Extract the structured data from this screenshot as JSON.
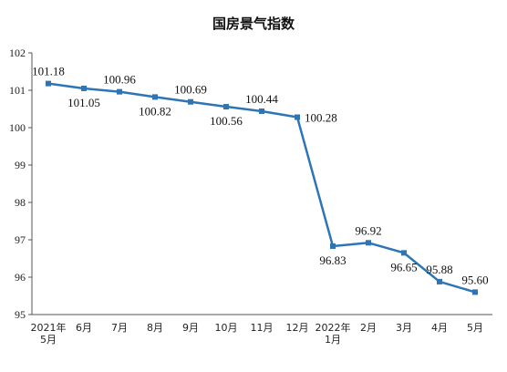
{
  "chart_data": {
    "type": "line",
    "title": "国房景气指数",
    "xlabel": "",
    "ylabel": "",
    "categories": [
      [
        "2021年",
        "5月"
      ],
      [
        "6月"
      ],
      [
        "7月"
      ],
      [
        "8月"
      ],
      [
        "9月"
      ],
      [
        "10月"
      ],
      [
        "11月"
      ],
      [
        "12月"
      ],
      [
        "2022年",
        "1月"
      ],
      [
        "2月"
      ],
      [
        "3月"
      ],
      [
        "4月"
      ],
      [
        "5月"
      ]
    ],
    "series": [
      {
        "values": [
          101.18,
          101.05,
          100.96,
          100.82,
          100.69,
          100.56,
          100.44,
          100.28,
          96.83,
          96.92,
          96.65,
          95.88,
          95.6
        ],
        "color": "#2e75b6"
      }
    ],
    "data_labels": [
      "101.18",
      "101.05",
      "100.96",
      "100.82",
      "100.69",
      "100.56",
      "100.44",
      "100.28",
      "96.83",
      "96.92",
      "96.65",
      "95.88",
      "95.60"
    ],
    "label_positions": [
      "above",
      "below",
      "above",
      "below",
      "above",
      "below",
      "above",
      "right",
      "below",
      "above",
      "below",
      "above",
      "above"
    ],
    "yticks": [
      95,
      96,
      97,
      98,
      99,
      100,
      101,
      102
    ],
    "ylim": [
      95,
      102
    ],
    "grid": false,
    "legend": "none"
  }
}
